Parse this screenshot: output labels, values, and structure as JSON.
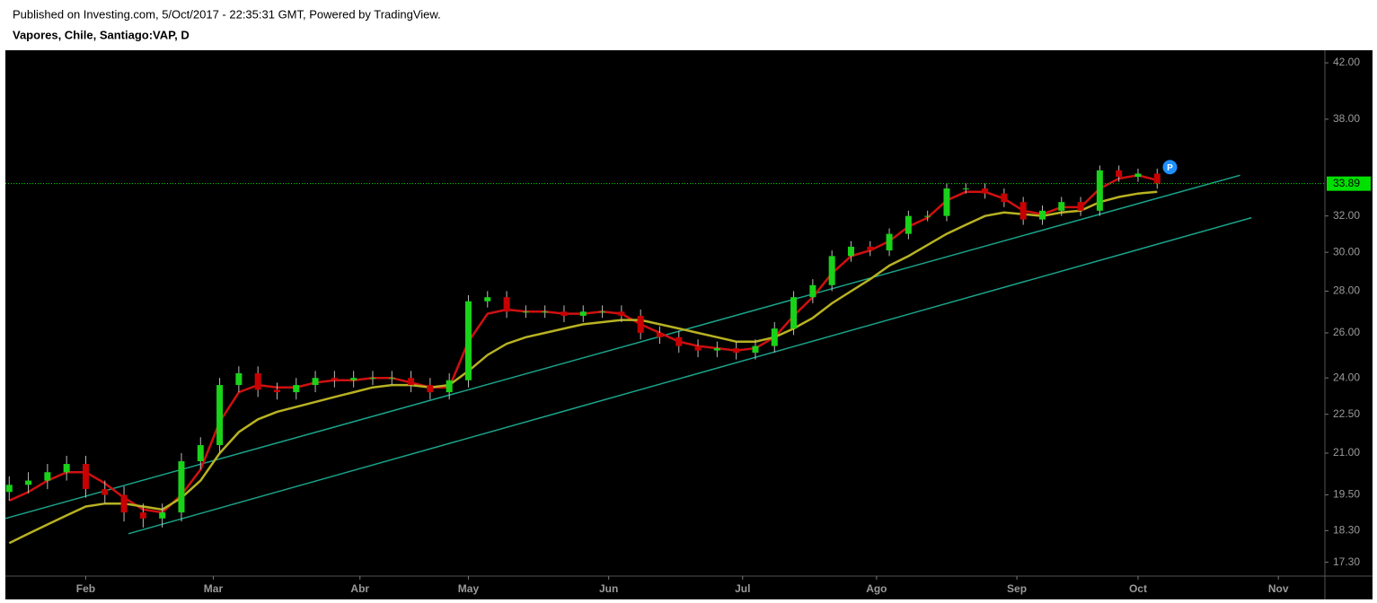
{
  "chart_data": {
    "type": "candlestick",
    "title": "Published on Investing.com, 5/Oct/2017 - 22:35:31 GMT, Powered by TradingView.",
    "subtitle": "Vapores, Chile, Santiago:VAP, D",
    "x": [
      0,
      3,
      6,
      9,
      12,
      15,
      18,
      21,
      24,
      27,
      30,
      33,
      36,
      39,
      42,
      45,
      48,
      51,
      54,
      57,
      60,
      63,
      66,
      69,
      72,
      75,
      78,
      81,
      84,
      87,
      90,
      93,
      96,
      99,
      102,
      105,
      108,
      111,
      114,
      117,
      120,
      123,
      126,
      129,
      132,
      135,
      138,
      141,
      144,
      147,
      150,
      153,
      156,
      159,
      162,
      165,
      168,
      171,
      174,
      177,
      180
    ],
    "open": [
      19.6,
      19.85,
      20.0,
      20.3,
      20.6,
      19.7,
      19.5,
      18.9,
      18.7,
      18.9,
      20.7,
      21.3,
      23.7,
      24.2,
      23.5,
      23.4,
      23.7,
      24.0,
      23.9,
      24.0,
      24.0,
      24.0,
      23.7,
      23.4,
      23.9,
      27.5,
      27.7,
      27.0,
      27.0,
      27.0,
      26.8,
      27.0,
      27.0,
      26.8,
      26.0,
      25.8,
      25.4,
      25.2,
      25.3,
      25.1,
      25.4,
      26.2,
      27.7,
      28.3,
      29.8,
      30.3,
      30.1,
      31.0,
      32.0,
      32.0,
      33.6,
      33.6,
      33.3,
      32.8,
      31.8,
      32.3,
      32.8,
      32.3,
      34.7,
      34.3,
      34.5
    ],
    "high": [
      20.15,
      20.3,
      20.6,
      20.9,
      20.9,
      20.0,
      19.8,
      19.2,
      19.2,
      21.0,
      21.6,
      24.0,
      24.5,
      24.5,
      23.8,
      24.0,
      24.3,
      24.3,
      24.3,
      24.3,
      24.3,
      24.3,
      24.0,
      24.2,
      27.8,
      28.0,
      28.0,
      27.3,
      27.3,
      27.3,
      27.3,
      27.3,
      27.3,
      27.1,
      26.3,
      26.1,
      25.7,
      25.6,
      25.6,
      25.7,
      26.5,
      28.0,
      28.6,
      30.1,
      30.6,
      30.6,
      31.3,
      32.3,
      32.3,
      33.9,
      33.9,
      33.9,
      33.6,
      33.1,
      32.6,
      33.1,
      33.1,
      35.0,
      35.0,
      34.8,
      34.8
    ],
    "low": [
      19.3,
      19.55,
      19.7,
      20.0,
      19.4,
      19.2,
      18.6,
      18.4,
      18.4,
      18.6,
      20.4,
      21.0,
      23.4,
      23.2,
      23.1,
      23.1,
      23.4,
      23.6,
      23.6,
      23.7,
      23.7,
      23.4,
      23.1,
      23.1,
      23.6,
      27.2,
      26.7,
      26.7,
      26.7,
      26.5,
      26.5,
      26.7,
      26.5,
      25.7,
      25.5,
      25.1,
      24.9,
      24.9,
      24.8,
      24.8,
      25.1,
      25.9,
      27.4,
      28.0,
      29.5,
      29.8,
      29.8,
      30.7,
      31.7,
      31.7,
      33.3,
      33.0,
      32.5,
      31.5,
      31.5,
      32.0,
      32.0,
      32.0,
      34.0,
      34.0,
      33.59
    ],
    "close": [
      19.85,
      20.0,
      20.3,
      20.6,
      19.7,
      19.5,
      18.9,
      18.7,
      18.9,
      20.7,
      21.3,
      23.7,
      24.2,
      23.5,
      23.4,
      23.7,
      24.0,
      23.9,
      24.0,
      24.0,
      24.0,
      23.7,
      23.4,
      23.9,
      27.5,
      27.7,
      27.0,
      27.0,
      27.0,
      26.8,
      27.0,
      27.0,
      26.8,
      26.0,
      25.8,
      25.4,
      25.2,
      25.3,
      25.1,
      25.4,
      26.2,
      27.7,
      28.3,
      29.8,
      30.3,
      30.1,
      31.0,
      32.0,
      32.0,
      33.6,
      33.6,
      33.3,
      32.8,
      31.8,
      32.3,
      32.8,
      32.3,
      34.7,
      34.3,
      34.5,
      33.89
    ],
    "up_color": "#19d219",
    "down_color": "#c80000",
    "series": [
      {
        "color": "#d01010",
        "values": [
          19.3,
          19.6,
          20.0,
          20.3,
          20.3,
          19.9,
          19.4,
          19.0,
          18.9,
          19.5,
          20.4,
          22.2,
          23.4,
          23.7,
          23.6,
          23.6,
          23.8,
          23.9,
          23.9,
          24.0,
          24.0,
          23.8,
          23.6,
          23.6,
          25.6,
          26.9,
          27.1,
          27.0,
          27.0,
          26.9,
          26.9,
          27.0,
          26.9,
          26.4,
          26.0,
          25.6,
          25.4,
          25.3,
          25.2,
          25.3,
          25.8,
          26.8,
          27.7,
          28.9,
          29.8,
          30.1,
          30.6,
          31.4,
          31.9,
          32.9,
          33.4,
          33.4,
          33.0,
          32.3,
          32.1,
          32.5,
          32.5,
          33.6,
          34.2,
          34.4,
          34.1
        ]
      },
      {
        "color": "#b8b222",
        "values": [
          17.9,
          18.2,
          18.5,
          18.8,
          19.1,
          19.2,
          19.2,
          19.1,
          19.0,
          19.4,
          20.0,
          21.0,
          21.8,
          22.3,
          22.6,
          22.8,
          23.0,
          23.2,
          23.4,
          23.6,
          23.7,
          23.7,
          23.6,
          23.7,
          24.3,
          25.0,
          25.5,
          25.8,
          26.0,
          26.2,
          26.4,
          26.5,
          26.6,
          26.6,
          26.4,
          26.2,
          26.0,
          25.8,
          25.6,
          25.6,
          25.8,
          26.2,
          26.7,
          27.4,
          28.0,
          28.6,
          29.3,
          29.8,
          30.4,
          31.0,
          31.5,
          32.0,
          32.2,
          32.1,
          32.0,
          32.2,
          32.3,
          32.8,
          33.1,
          33.3,
          33.4
        ]
      }
    ],
    "trendlines": [
      {
        "color": "#1aa38a",
        "x": [
          -0.6,
          193
        ],
        "values": [
          18.7,
          34.4
        ]
      },
      {
        "color": "#1aa38a",
        "x": [
          18.7,
          194.8
        ],
        "values": [
          18.2,
          31.9
        ]
      }
    ],
    "last_price": 33.89,
    "last_price_color": "#00e000",
    "annotations": [
      {
        "text": "P",
        "x": 182,
        "y": 34.9,
        "color": "#1e90ff"
      }
    ],
    "xlim": [
      -0.6,
      206.3
    ],
    "xticks": [
      {
        "value": 12,
        "label": "Feb"
      },
      {
        "value": 32,
        "label": "Mar"
      },
      {
        "value": 55,
        "label": "Abr"
      },
      {
        "value": 72,
        "label": "May"
      },
      {
        "value": 94,
        "label": "Jun"
      },
      {
        "value": 115,
        "label": "Jul"
      },
      {
        "value": 136,
        "label": "Ago"
      },
      {
        "value": 158,
        "label": "Sep"
      },
      {
        "value": 177,
        "label": "Oct"
      },
      {
        "value": 199,
        "label": "Nov"
      }
    ],
    "ylim": [
      16.88,
      42.95
    ],
    "y_scale": "log",
    "yticks": [
      {
        "value": 42,
        "label": "42.00"
      },
      {
        "value": 38,
        "label": "38.00"
      },
      {
        "value": 32,
        "label": "32.00"
      },
      {
        "value": 30,
        "label": "30.00"
      },
      {
        "value": 28,
        "label": "28.00"
      },
      {
        "value": 26,
        "label": "26.00"
      },
      {
        "value": 24,
        "label": "24.00"
      },
      {
        "value": 22.5,
        "label": "22.50"
      },
      {
        "value": 21,
        "label": "21.00"
      },
      {
        "value": 19.5,
        "label": "19.50"
      },
      {
        "value": 18.3,
        "label": "18.30"
      },
      {
        "value": 17.3,
        "label": "17.30"
      }
    ],
    "grid": false
  }
}
